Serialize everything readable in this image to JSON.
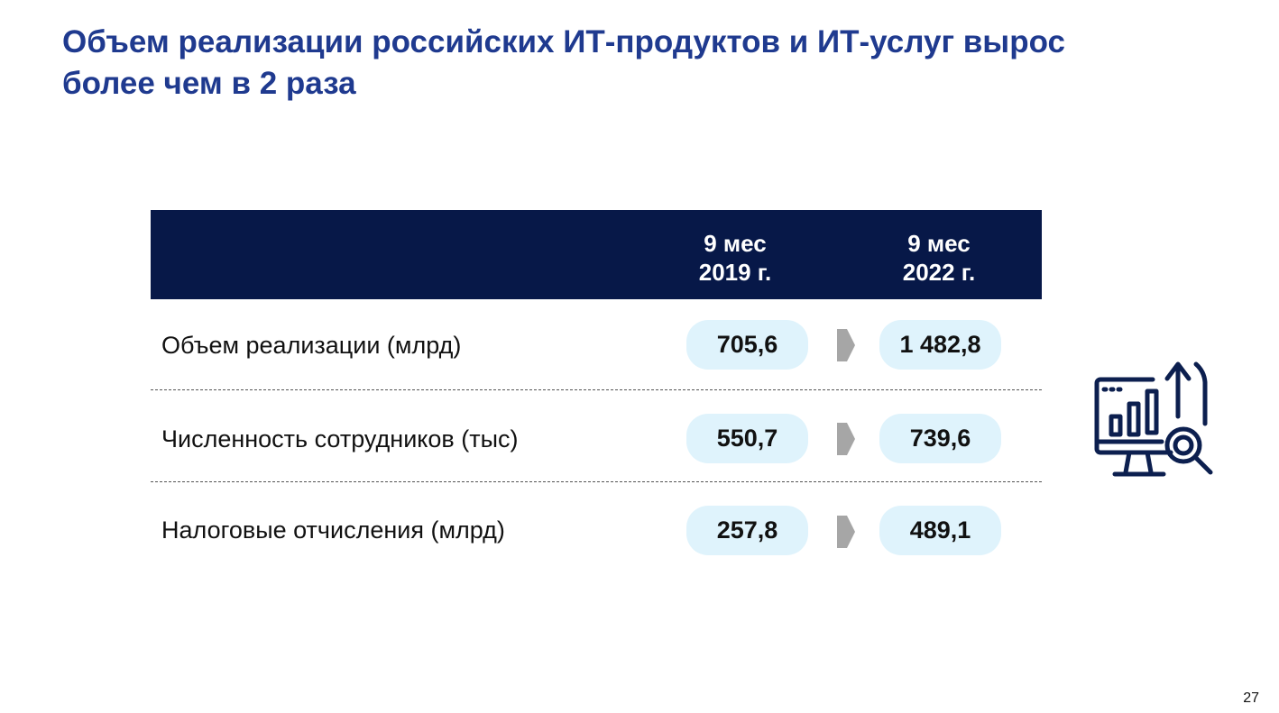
{
  "title": {
    "line1": "Объем реализации российских ИТ-продуктов и ИТ-услуг вырос",
    "line2": "более чем в 2 раза"
  },
  "table": {
    "columns": [
      {
        "line1": "9 мес",
        "line2": "2019 г."
      },
      {
        "line1": "9 мес",
        "line2": "2022 г."
      }
    ],
    "rows": [
      {
        "label": "Объем реализации (млрд)",
        "v2019": "705,6",
        "v2022": "1 482,8"
      },
      {
        "label": "Численность сотрудников (тыс)",
        "v2019": "550,7",
        "v2022": "739,6"
      },
      {
        "label": "Налоговые отчисления (млрд)",
        "v2019": "257,8",
        "v2022": "489,1"
      }
    ]
  },
  "icons": {
    "row_arrow": "arrow-right-icon",
    "illustration": "analytics-monitor-icon"
  },
  "colors": {
    "title": "#1f3a8f",
    "header_band": "#071848",
    "pill": "#dff3fc",
    "arrow": "#a6a6a6",
    "icon": "#0c1f4f"
  },
  "page_number": "27"
}
